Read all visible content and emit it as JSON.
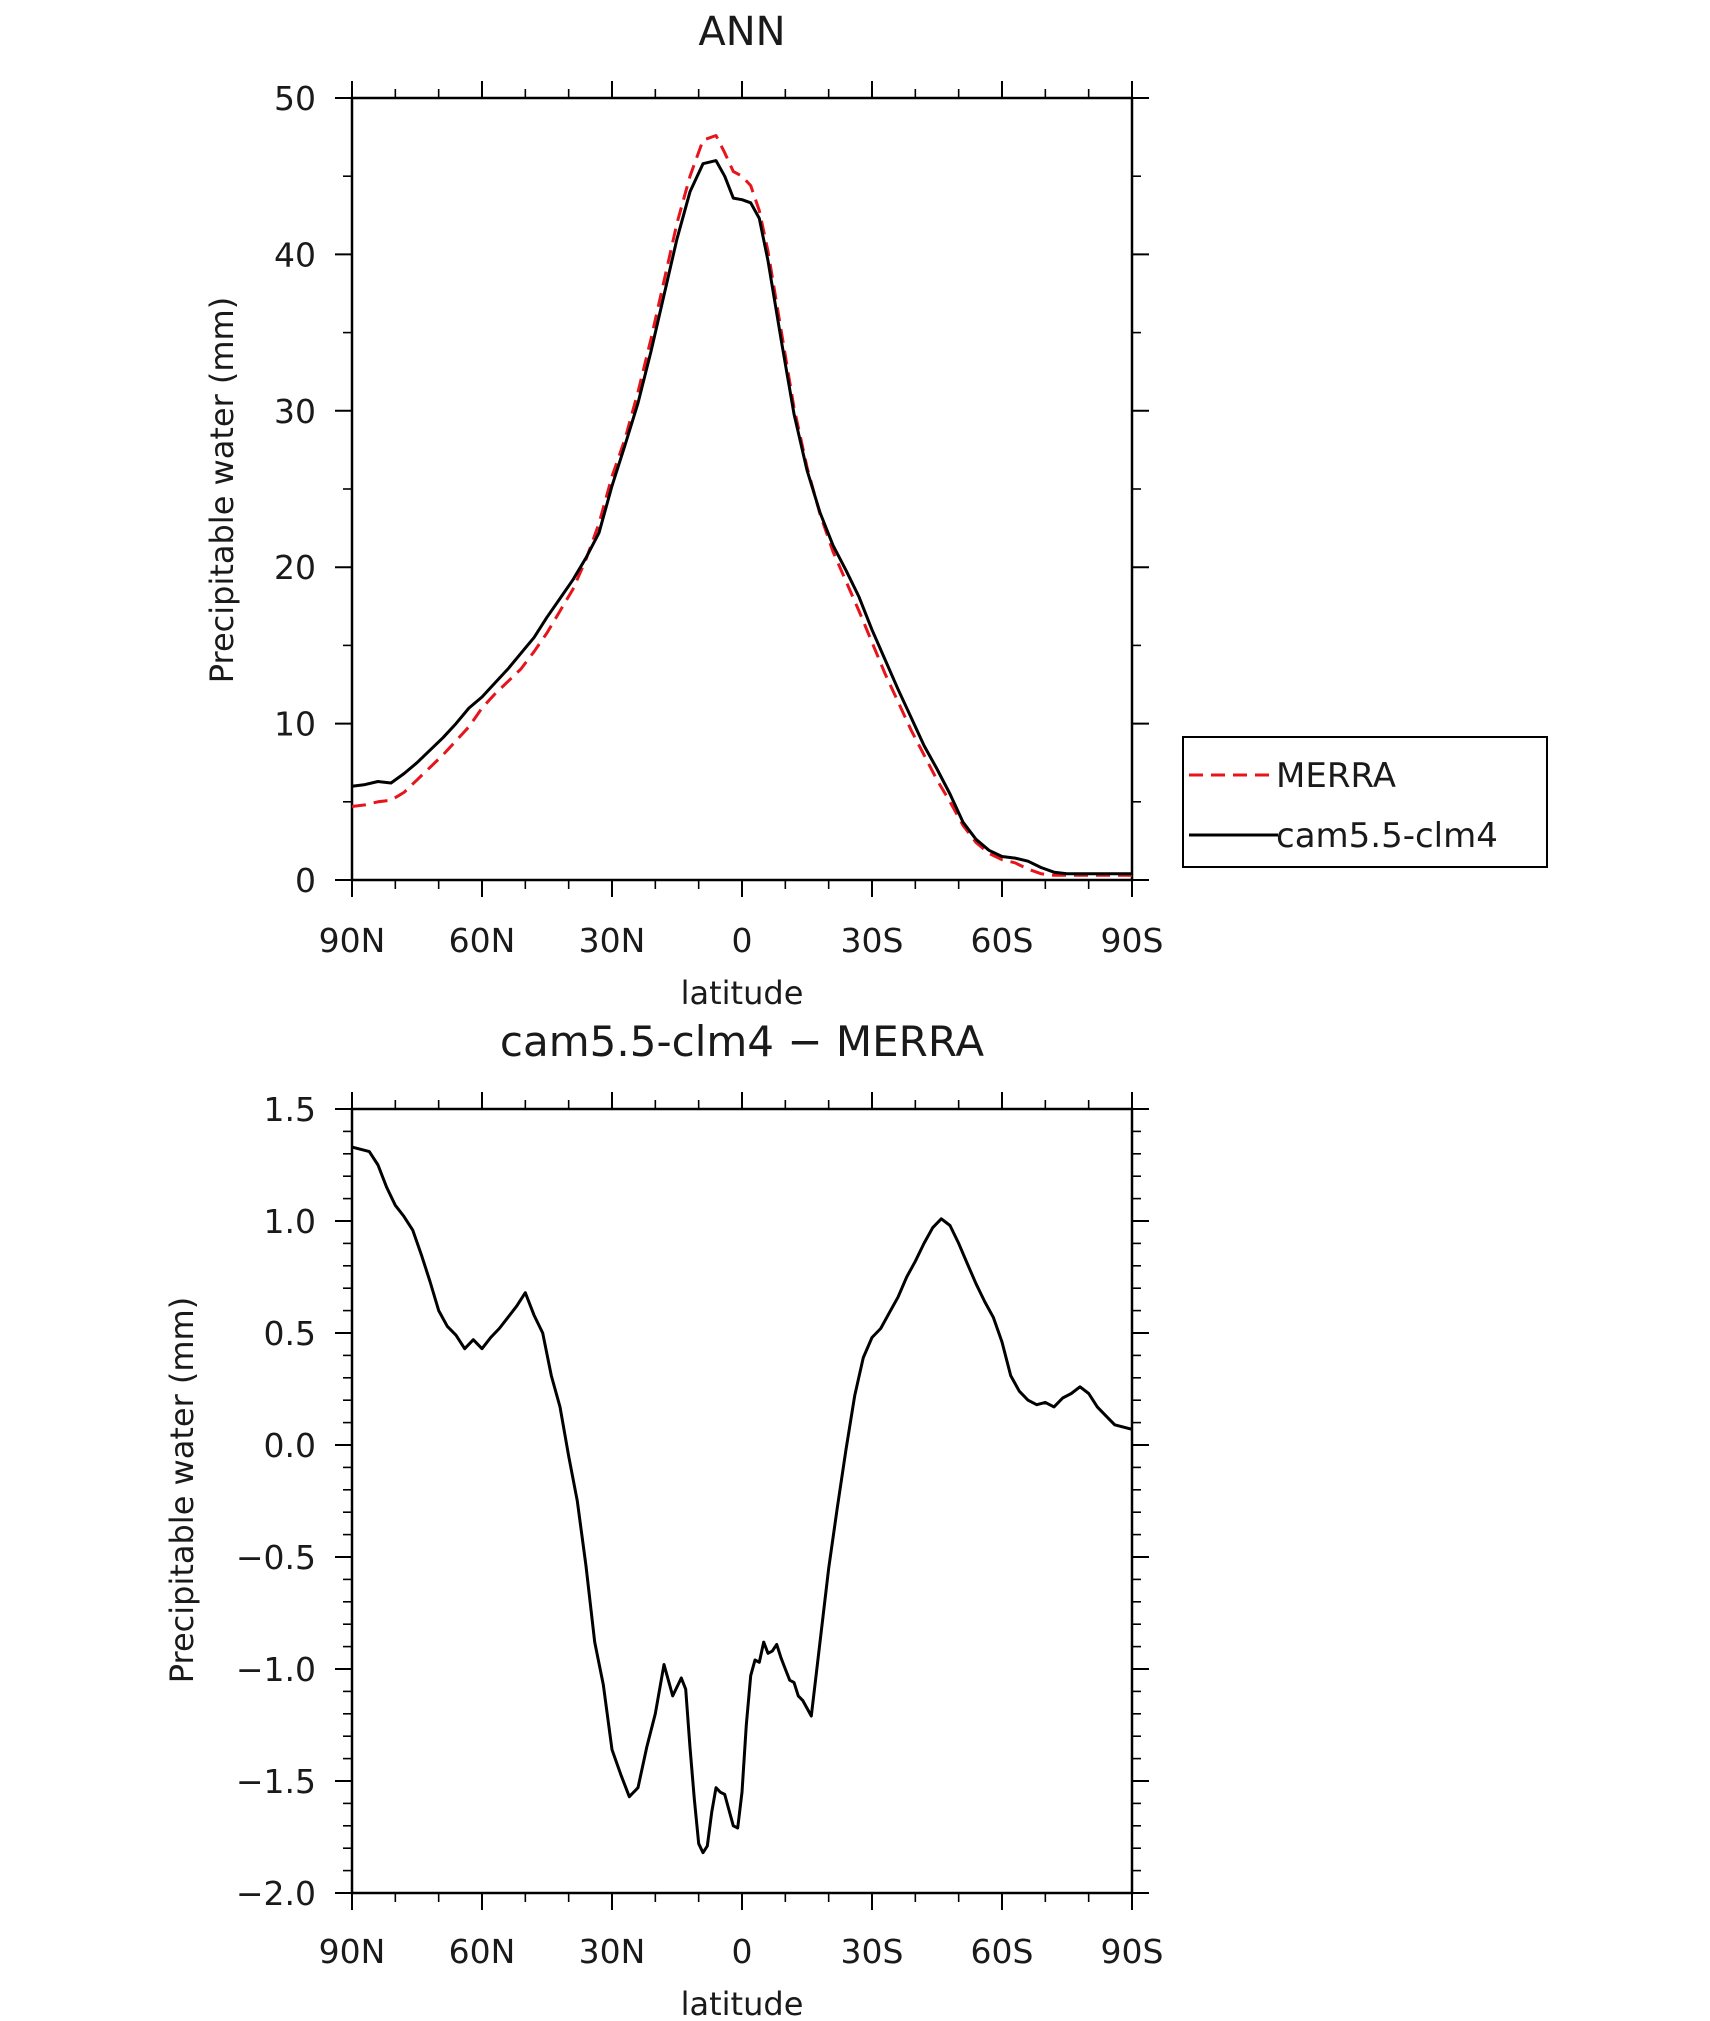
{
  "chart_data": [
    {
      "type": "line",
      "title": "ANN",
      "xlabel": "latitude",
      "ylabel": "Precipitable water (mm)",
      "xticks": [
        {
          "value": 90,
          "label": "90N"
        },
        {
          "value": 60,
          "label": "60N"
        },
        {
          "value": 30,
          "label": "30N"
        },
        {
          "value": 0,
          "label": "0"
        },
        {
          "value": -30,
          "label": "30S"
        },
        {
          "value": -60,
          "label": "60S"
        },
        {
          "value": -90,
          "label": "90S"
        }
      ],
      "xlim": [
        90,
        -90
      ],
      "ylim": [
        0,
        50
      ],
      "yticks": [
        {
          "value": 0,
          "label": "0"
        },
        {
          "value": 10,
          "label": "10"
        },
        {
          "value": 20,
          "label": "20"
        },
        {
          "value": 30,
          "label": "30"
        },
        {
          "value": 40,
          "label": "40"
        },
        {
          "value": 50,
          "label": "50"
        }
      ],
      "grid": false,
      "legend": {
        "position": "right, outside plot"
      },
      "series": [
        {
          "name": "MERRA",
          "color": "#e8141c",
          "dash": "dashed",
          "x": [
            90,
            87,
            84,
            81,
            78,
            75,
            72,
            69,
            66,
            63,
            60,
            57,
            54,
            51,
            48,
            45,
            42,
            39,
            36,
            33,
            30,
            27,
            24,
            21,
            18,
            15,
            12,
            9,
            6,
            4,
            2,
            0,
            -2,
            -4,
            -6,
            -9,
            -12,
            -15,
            -18,
            -21,
            -24,
            -27,
            -30,
            -33,
            -36,
            -39,
            -42,
            -45,
            -48,
            -51,
            -54,
            -57,
            -60,
            -63,
            -66,
            -69,
            -72,
            -75,
            -78,
            -81,
            -84,
            -87,
            -90
          ],
          "y": [
            4.7,
            4.8,
            5.0,
            5.1,
            5.6,
            6.4,
            7.2,
            8.0,
            8.9,
            9.8,
            11.0,
            11.9,
            12.7,
            13.5,
            14.6,
            15.8,
            17.2,
            18.6,
            20.5,
            22.8,
            25.8,
            28.2,
            31.2,
            34.6,
            38.3,
            42.0,
            45.0,
            47.3,
            47.6,
            46.5,
            45.3,
            45.0,
            44.4,
            42.8,
            40.2,
            35.2,
            30.2,
            26.4,
            23.4,
            21.0,
            19.1,
            17.2,
            15.2,
            13.2,
            11.4,
            9.6,
            8.0,
            6.4,
            5.0,
            3.5,
            2.4,
            1.7,
            1.3,
            1.1,
            0.7,
            0.4,
            0.3,
            0.3,
            0.3,
            0.3,
            0.3,
            0.3,
            0.3
          ]
        },
        {
          "name": "cam5.5-clm4",
          "color": "#000000",
          "dash": "solid",
          "x": [
            90,
            87,
            84,
            81,
            78,
            75,
            72,
            69,
            66,
            63,
            60,
            57,
            54,
            51,
            48,
            45,
            42,
            39,
            36,
            33,
            30,
            27,
            24,
            21,
            18,
            15,
            12,
            9,
            6,
            4,
            2,
            0,
            -2,
            -4,
            -6,
            -9,
            -12,
            -15,
            -18,
            -21,
            -24,
            -27,
            -30,
            -33,
            -36,
            -39,
            -42,
            -45,
            -48,
            -51,
            -54,
            -57,
            -60,
            -63,
            -66,
            -69,
            -72,
            -75,
            -78,
            -81,
            -84,
            -87,
            -90
          ],
          "y": [
            6.0,
            6.1,
            6.3,
            6.2,
            6.8,
            7.5,
            8.3,
            9.1,
            10.0,
            11.0,
            11.7,
            12.6,
            13.5,
            14.5,
            15.5,
            16.8,
            18.0,
            19.2,
            20.6,
            22.2,
            25.2,
            27.8,
            30.5,
            33.8,
            37.4,
            41.0,
            44.0,
            45.8,
            46.0,
            45.0,
            43.6,
            43.5,
            43.3,
            42.3,
            39.6,
            34.6,
            29.8,
            26.2,
            23.5,
            21.4,
            19.8,
            18.1,
            16.0,
            14.1,
            12.2,
            10.4,
            8.6,
            7.1,
            5.5,
            3.7,
            2.6,
            1.9,
            1.5,
            1.4,
            1.2,
            0.8,
            0.5,
            0.4,
            0.4,
            0.4,
            0.4,
            0.4,
            0.4
          ]
        }
      ]
    },
    {
      "type": "line",
      "title": "cam5.5-clm4 − MERRA",
      "xlabel": "latitude",
      "ylabel": "Precipitable water (mm)",
      "xticks": [
        {
          "value": 90,
          "label": "90N"
        },
        {
          "value": 60,
          "label": "60N"
        },
        {
          "value": 30,
          "label": "30N"
        },
        {
          "value": 0,
          "label": "0"
        },
        {
          "value": -30,
          "label": "30S"
        },
        {
          "value": -60,
          "label": "60S"
        },
        {
          "value": -90,
          "label": "90S"
        }
      ],
      "xlim": [
        90,
        -90
      ],
      "ylim": [
        -2.0,
        1.5
      ],
      "yticks": [
        {
          "value": 1.5,
          "label": "1.5"
        },
        {
          "value": 1.0,
          "label": "1.0"
        },
        {
          "value": 0.5,
          "label": "0.5"
        },
        {
          "value": 0.0,
          "label": "0.0"
        },
        {
          "value": -0.5,
          "label": "−0.5"
        },
        {
          "value": -1.0,
          "label": "−1.0"
        },
        {
          "value": -1.5,
          "label": "−1.5"
        },
        {
          "value": -2.0,
          "label": "−2.0"
        }
      ],
      "grid": false,
      "series": [
        {
          "color": "#000000",
          "dash": "solid",
          "x": [
            90,
            88,
            86,
            84,
            82,
            80,
            78,
            76,
            74,
            72,
            70,
            68,
            66,
            64,
            62,
            60,
            58,
            56,
            54,
            52,
            50,
            48,
            46,
            44,
            42,
            40,
            38,
            36,
            34,
            32,
            30,
            28,
            26,
            24,
            22,
            20,
            18,
            16,
            14,
            13,
            12,
            11,
            10,
            9,
            8,
            7,
            6,
            5,
            4,
            3,
            2,
            1,
            0,
            -1,
            -2,
            -3,
            -4,
            -5,
            -6,
            -7,
            -8,
            -9,
            -10,
            -11,
            -12,
            -13,
            -14,
            -16,
            -18,
            -20,
            -22,
            -24,
            -26,
            -28,
            -30,
            -32,
            -34,
            -36,
            -38,
            -40,
            -42,
            -44,
            -46,
            -48,
            -50,
            -52,
            -54,
            -56,
            -58,
            -60,
            -62,
            -64,
            -66,
            -68,
            -70,
            -72,
            -74,
            -76,
            -78,
            -80,
            -82,
            -84,
            -86,
            -88,
            -90
          ],
          "y": [
            1.33,
            1.32,
            1.31,
            1.25,
            1.15,
            1.07,
            1.02,
            0.96,
            0.85,
            0.73,
            0.6,
            0.53,
            0.49,
            0.43,
            0.47,
            0.43,
            0.48,
            0.52,
            0.57,
            0.62,
            0.68,
            0.58,
            0.5,
            0.31,
            0.17,
            -0.05,
            -0.25,
            -0.54,
            -0.88,
            -1.07,
            -1.36,
            -1.47,
            -1.57,
            -1.53,
            -1.35,
            -1.2,
            -0.98,
            -1.12,
            -1.04,
            -1.09,
            -1.35,
            -1.58,
            -1.78,
            -1.82,
            -1.79,
            -1.64,
            -1.53,
            -1.55,
            -1.56,
            -1.63,
            -1.7,
            -1.71,
            -1.55,
            -1.25,
            -1.03,
            -0.96,
            -0.97,
            -0.88,
            -0.93,
            -0.92,
            -0.89,
            -0.95,
            -1.0,
            -1.05,
            -1.06,
            -1.12,
            -1.14,
            -1.21,
            -0.88,
            -0.55,
            -0.28,
            -0.02,
            0.22,
            0.39,
            0.48,
            0.52,
            0.59,
            0.66,
            0.75,
            0.82,
            0.9,
            0.97,
            1.01,
            0.98,
            0.9,
            0.81,
            0.72,
            0.64,
            0.57,
            0.46,
            0.31,
            0.24,
            0.2,
            0.18,
            0.19,
            0.17,
            0.21,
            0.23,
            0.26,
            0.23,
            0.17,
            0.13,
            0.09,
            0.08,
            0.07
          ]
        }
      ]
    }
  ]
}
